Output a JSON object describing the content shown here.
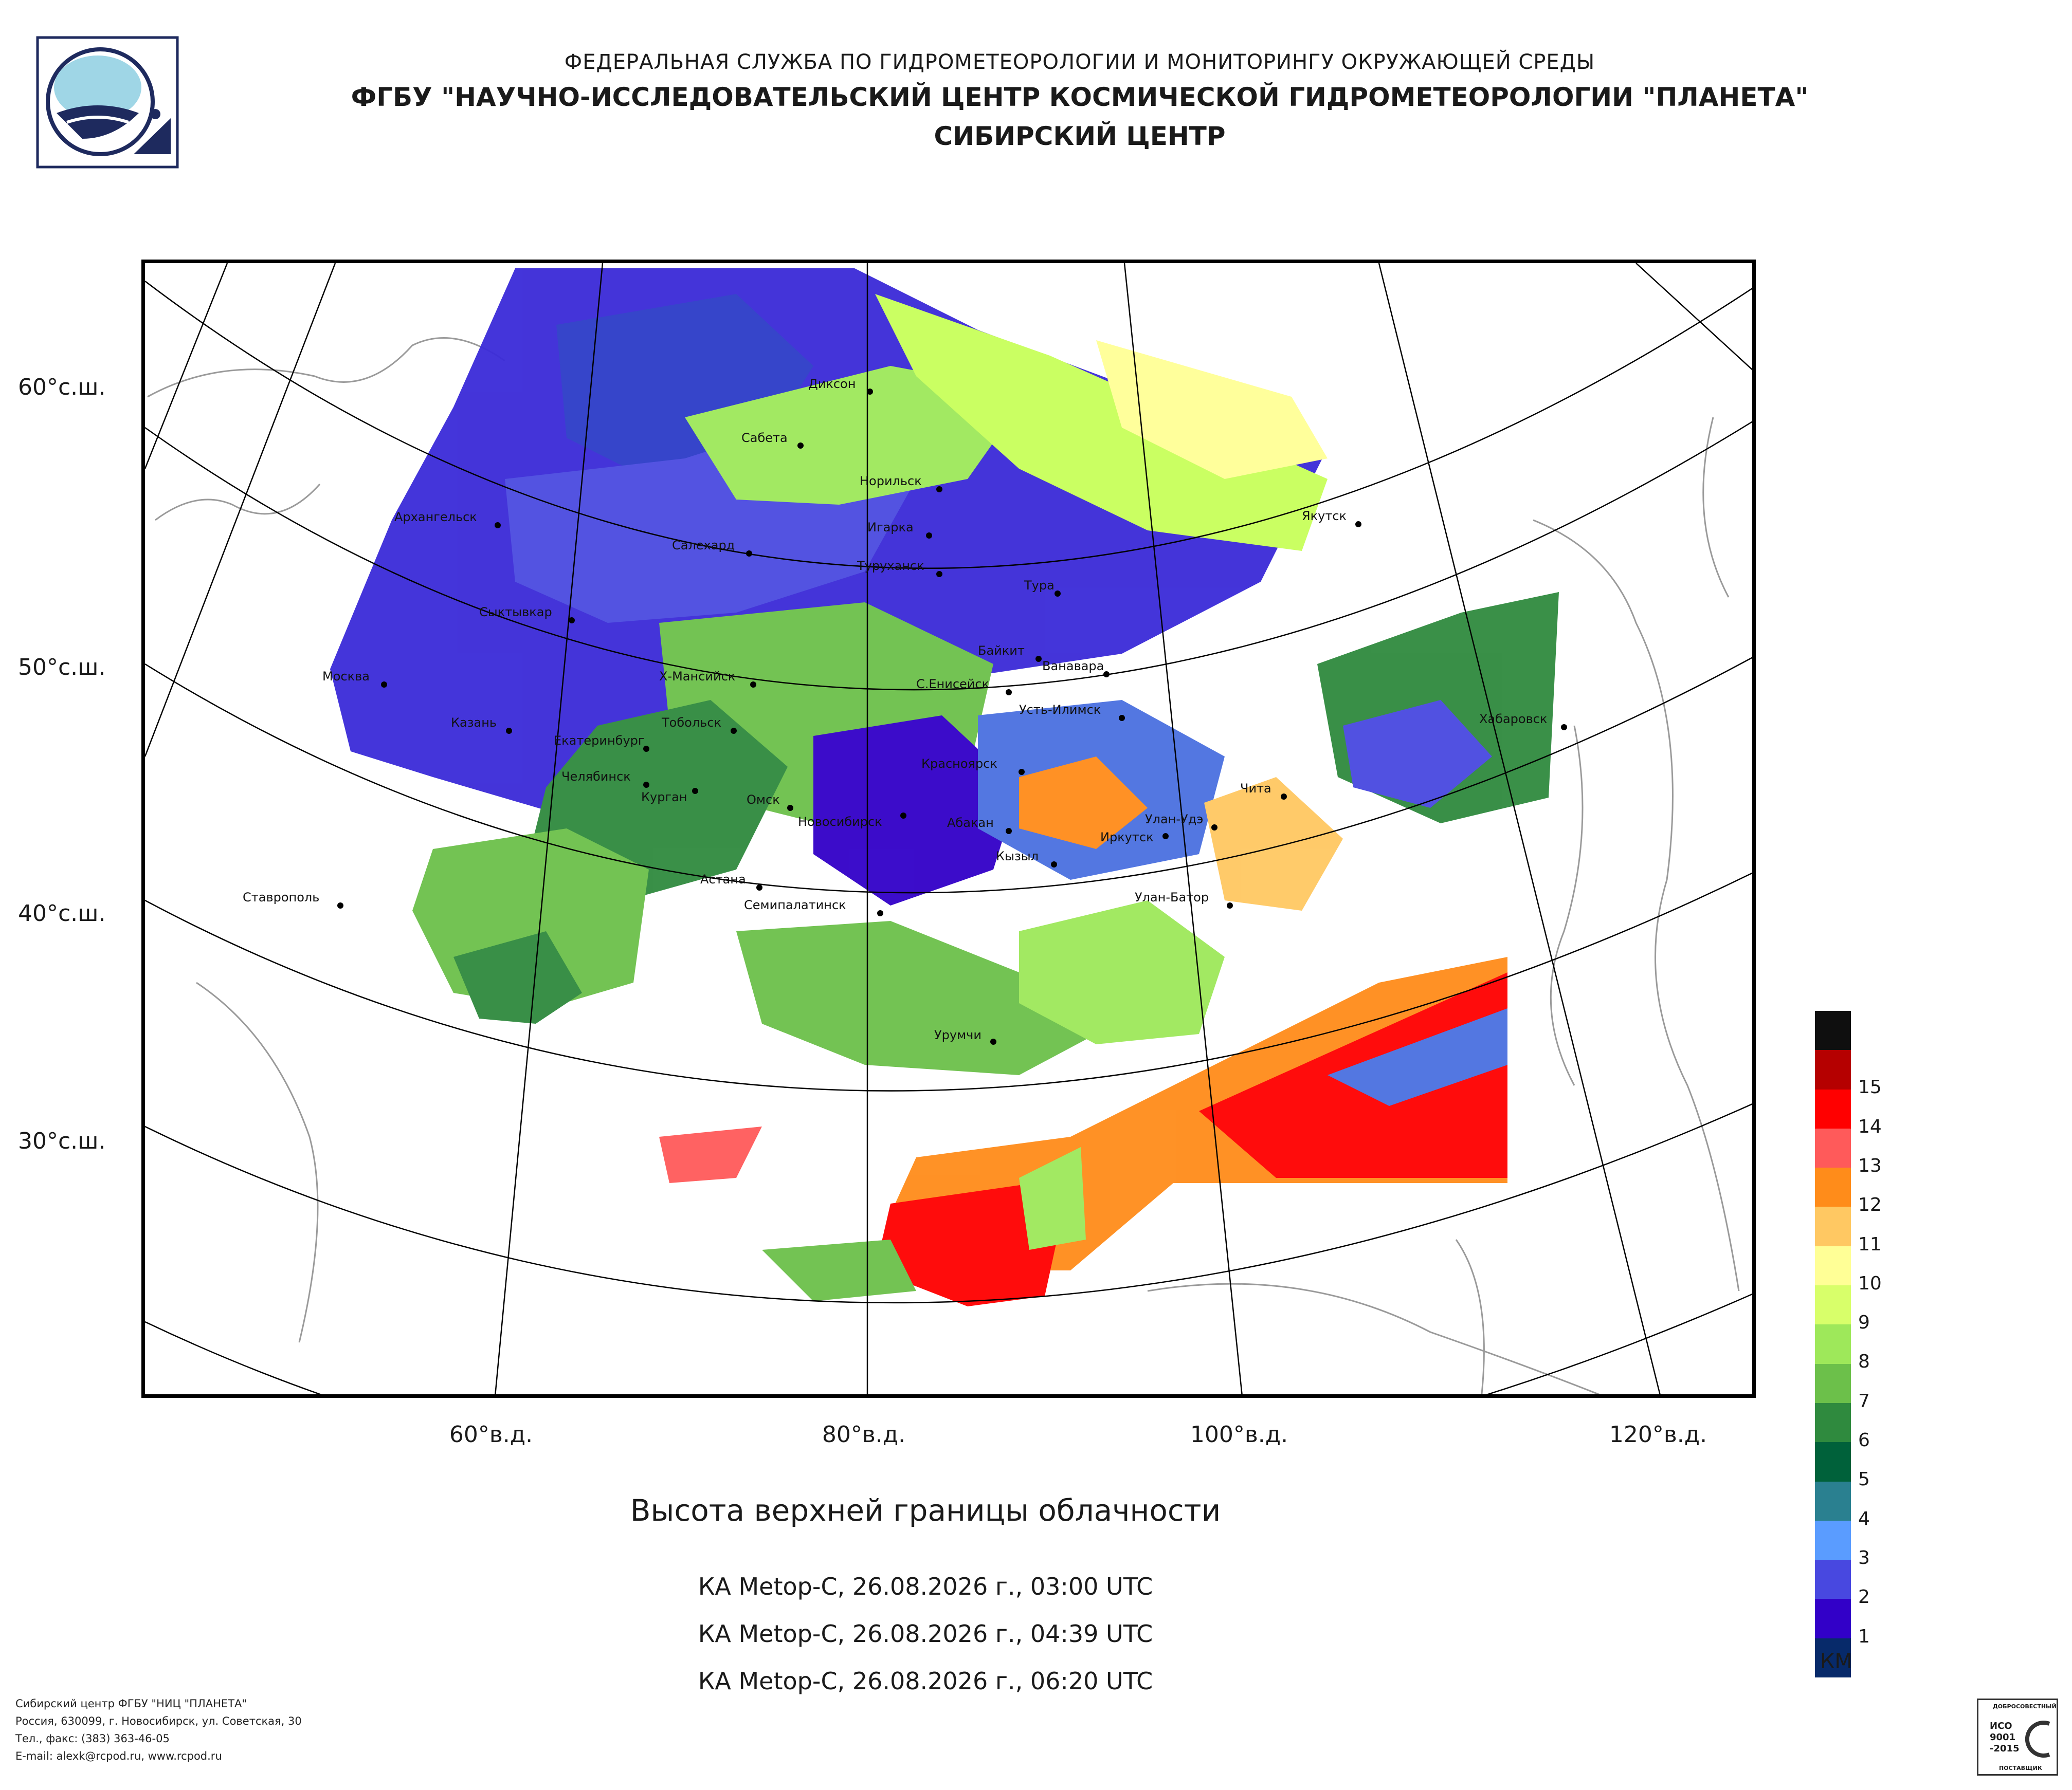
{
  "header": {
    "org": "ФЕДЕРАЛЬНАЯ СЛУЖБА ПО ГИДРОМЕТЕОРОЛОГИИ И МОНИТОРИНГУ ОКРУЖАЮЩЕЙ СРЕДЫ",
    "institute": "ФГБУ \"НАУЧНО-ИССЛЕДОВАТЕЛЬСКИЙ ЦЕНТР КОСМИЧЕСКОЙ ГИДРОМЕТЕОРОЛОГИИ \"ПЛАНЕТА\"",
    "center": "СИБИРСКИЙ ЦЕНТР"
  },
  "title": "Высота верхней границы облачности",
  "satellite_passes": [
    "КА Metop-C, 26.08.2026 г., 03:00 UTC",
    "КА Metop-C, 26.08.2026 г., 04:39 UTC",
    "КА Metop-C, 26.08.2026 г., 06:20 UTC"
  ],
  "lat_labels": [
    "60°с.ш.",
    "50°с.ш.",
    "40°с.ш.",
    "30°с.ш."
  ],
  "lon_labels": [
    "60°в.д.",
    "80°в.д.",
    "100°в.д.",
    "120°в.д."
  ],
  "cities": [
    {
      "name": "Диксон"
    },
    {
      "name": "Сабета"
    },
    {
      "name": "Норильск"
    },
    {
      "name": "Игарка"
    },
    {
      "name": "Туруханск"
    },
    {
      "name": "Тура"
    },
    {
      "name": "Якутск"
    },
    {
      "name": "Архангельск"
    },
    {
      "name": "Салехард"
    },
    {
      "name": "Сыктывкар"
    },
    {
      "name": "Байкит"
    },
    {
      "name": "Ванавара"
    },
    {
      "name": "Москва"
    },
    {
      "name": "Х-Мансийск"
    },
    {
      "name": "С.Енисейск"
    },
    {
      "name": "Усть-Илимск"
    },
    {
      "name": "Казань"
    },
    {
      "name": "Екатеринбург"
    },
    {
      "name": "Тобольск"
    },
    {
      "name": "Хабаровск"
    },
    {
      "name": "Красноярск"
    },
    {
      "name": "Челябинск"
    },
    {
      "name": "Курган"
    },
    {
      "name": "Омск"
    },
    {
      "name": "Чита"
    },
    {
      "name": "Новосибирск"
    },
    {
      "name": "Абакан"
    },
    {
      "name": "Улан-Удэ"
    },
    {
      "name": "Иркутск"
    },
    {
      "name": "Кызыл"
    },
    {
      "name": "Астана"
    },
    {
      "name": "Ставрополь"
    },
    {
      "name": "Семипалатинск"
    },
    {
      "name": "Улан-Батор"
    },
    {
      "name": "Урумчи"
    }
  ],
  "legend": {
    "unit": "КМ",
    "levels": [
      {
        "value": "",
        "color": "#0f0f0f"
      },
      {
        "value": "15",
        "color": "#b50000"
      },
      {
        "value": "14",
        "color": "#ff0000"
      },
      {
        "value": "13",
        "color": "#ff5a5a"
      },
      {
        "value": "12",
        "color": "#ff8c1a"
      },
      {
        "value": "11",
        "color": "#ffc862"
      },
      {
        "value": "10",
        "color": "#ffff96"
      },
      {
        "value": "9",
        "color": "#d8ff6a"
      },
      {
        "value": "8",
        "color": "#9ee85a"
      },
      {
        "value": "7",
        "color": "#6cc04a"
      },
      {
        "value": "6",
        "color": "#2f8a3e"
      },
      {
        "value": "5",
        "color": "#00613a"
      },
      {
        "value": "4",
        "color": "#2a8090"
      },
      {
        "value": "3",
        "color": "#5a9cff"
      },
      {
        "value": "2",
        "color": "#4848e0"
      },
      {
        "value": "1",
        "color": "#3200c8"
      },
      {
        "value": "",
        "color": "#072a6a"
      }
    ]
  },
  "footer": {
    "line1": "Сибирский центр ФГБУ \"НИЦ \"ПЛАНЕТА\"",
    "line2": "Россия, 630099, г. Новосибирск, ул. Советская, 30",
    "line3": "Тел., факс: (383) 363-46-05",
    "line4": "E-mail: alexk@rcpod.ru, www.rcpod.ru"
  },
  "iso_badge": {
    "top": "ДОБРОСОВЕСТНЫЙ",
    "mid1": "ИСО",
    "mid2": "9001",
    "mid3": "-2015",
    "bottom": "ПОСТАВЩИК"
  }
}
